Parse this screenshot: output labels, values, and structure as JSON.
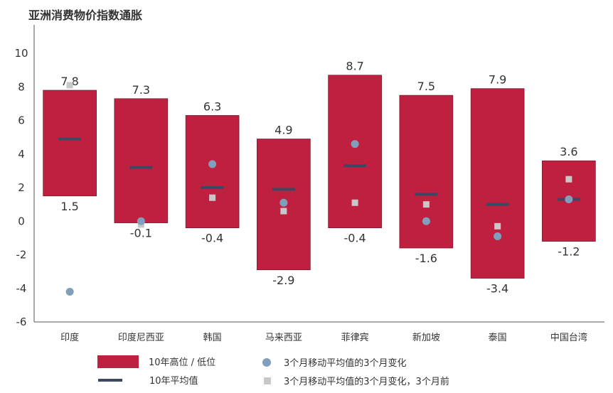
{
  "chart_data": {
    "type": "range_bar",
    "title": "亚洲消费物价指数通胀",
    "ylim": [
      -6,
      10
    ],
    "yticks": [
      -6,
      -4,
      -2,
      0,
      2,
      4,
      6,
      8,
      10
    ],
    "categories": [
      "印度",
      "印度尼西亚",
      "韩国",
      "马来西亚",
      "菲律宾",
      "新加坡",
      "泰国",
      "中国台湾"
    ],
    "high": [
      7.8,
      7.3,
      6.3,
      4.9,
      8.7,
      7.5,
      7.9,
      3.6
    ],
    "low": [
      1.5,
      -0.1,
      -0.4,
      -2.9,
      -0.4,
      -1.6,
      -3.4,
      -1.2
    ],
    "high_labels": [
      "7.8",
      "7.3",
      "6.3",
      "4.9",
      "8.7",
      "7.5",
      "7.9",
      "3.6"
    ],
    "low_labels": [
      "1.5",
      "-0.1",
      "-0.4",
      "-2.9",
      "-0.4",
      "-1.6",
      "-3.4",
      "-1.2"
    ],
    "avg_10y": [
      4.9,
      3.2,
      2.0,
      1.9,
      3.3,
      1.6,
      1.0,
      1.3
    ],
    "change_3m": [
      -4.2,
      0.0,
      3.4,
      1.1,
      4.6,
      0.0,
      -0.9,
      1.3
    ],
    "change_3m_prior": [
      8.1,
      -0.2,
      1.4,
      0.6,
      1.1,
      1.0,
      -0.3,
      2.5
    ],
    "legend": {
      "range": "10年高位 / 低位",
      "avg": "10年平均值",
      "change": "3个月移动平均值的3个月变化",
      "change_prior": "3个月移动平均值的3个月变化，3个月前"
    },
    "colors": {
      "range": "#c0203f",
      "avg": "#3b4a62",
      "change": "#7f9fbb",
      "change_prior": "#c8c8c8"
    }
  }
}
